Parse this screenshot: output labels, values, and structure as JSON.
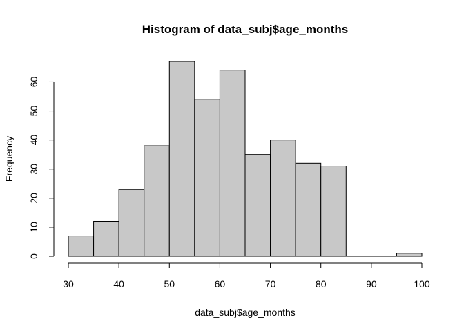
{
  "chart_data": {
    "type": "bar",
    "title": "Histogram of data_subj$age_months",
    "xlabel": "data_subj$age_months",
    "ylabel": "Frequency",
    "bin_width": 5,
    "bins": [
      {
        "start": 30,
        "end": 35,
        "value": 7
      },
      {
        "start": 35,
        "end": 40,
        "value": 12
      },
      {
        "start": 40,
        "end": 45,
        "value": 23
      },
      {
        "start": 45,
        "end": 50,
        "value": 38
      },
      {
        "start": 50,
        "end": 55,
        "value": 67
      },
      {
        "start": 55,
        "end": 60,
        "value": 54
      },
      {
        "start": 60,
        "end": 65,
        "value": 64
      },
      {
        "start": 65,
        "end": 70,
        "value": 35
      },
      {
        "start": 70,
        "end": 75,
        "value": 40
      },
      {
        "start": 75,
        "end": 80,
        "value": 32
      },
      {
        "start": 80,
        "end": 85,
        "value": 31
      },
      {
        "start": 85,
        "end": 90,
        "value": 0
      },
      {
        "start": 90,
        "end": 95,
        "value": 0
      },
      {
        "start": 95,
        "end": 100,
        "value": 1
      }
    ],
    "xlim": [
      30,
      100
    ],
    "ylim": [
      0,
      67
    ],
    "x_ticks": [
      30,
      40,
      50,
      60,
      70,
      80,
      90,
      100
    ],
    "y_ticks": [
      0,
      10,
      20,
      30,
      40,
      50,
      60
    ],
    "grid": false,
    "bar_color": "#c8c8c8",
    "bar_border_color": "#000000"
  }
}
